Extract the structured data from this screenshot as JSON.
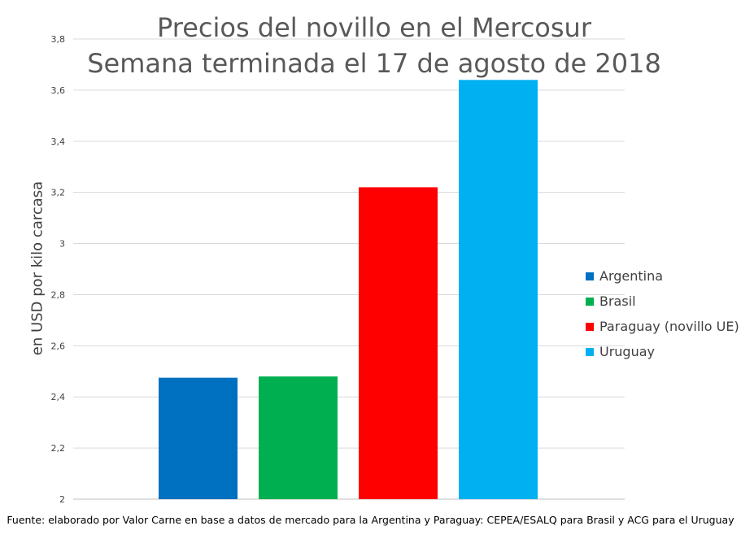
{
  "chart_data": {
    "type": "bar",
    "title": "Precios del novillo en el Mercosur",
    "subtitle": "Semana terminada el 17 de agosto de 2018",
    "ylabel": "en USD por kilo carcasa",
    "xlabel": "",
    "ylim": [
      2,
      3.8
    ],
    "yticks": [
      "2",
      "2,2",
      "2,4",
      "2,6",
      "2,8",
      "3",
      "3,2",
      "3,4",
      "3,6",
      "3,8"
    ],
    "grid": true,
    "legend_position": "right",
    "series": [
      {
        "name": "Argentina",
        "value": 2.475,
        "color": "#0070C0"
      },
      {
        "name": "Brasil",
        "value": 2.48,
        "color": "#00B050"
      },
      {
        "name": "Paraguay (novillo UE)",
        "value": 3.22,
        "color": "#FF0000"
      },
      {
        "name": "Uruguay",
        "value": 3.64,
        "color": "#00B0F0"
      }
    ],
    "source": "Fuente: elaborado por Valor Carne en base a datos de mercado para la Argentina y Paraguay: CEPEA/ESALQ para Brasil y ACG para el Uruguay"
  }
}
